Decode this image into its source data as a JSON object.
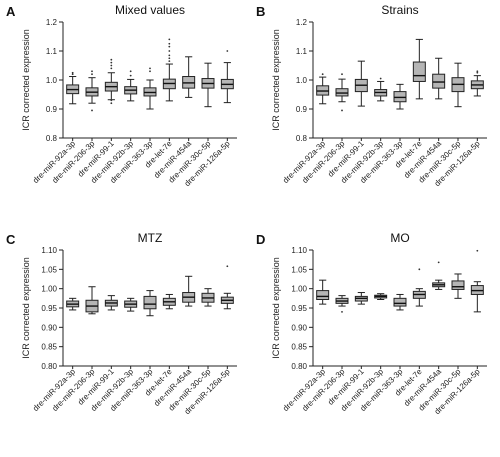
{
  "chart_data": [
    {
      "type": "box",
      "panel_letter": "A",
      "title": "Mixed values",
      "ylabel": "ICR corrected expression",
      "ylim": [
        0.8,
        1.2
      ],
      "yticks": [
        "0.8",
        "0.9",
        "1.0",
        "1.1",
        "1.2"
      ],
      "categories": [
        "dre-miR-92a-3p",
        "dre-miR-206-3p",
        "dre-miR-99-1",
        "dre-miR-92b-3p",
        "dre-miR-363-3p",
        "dre-let-7e",
        "dre-miR-454a",
        "dre-miR-30c-5p",
        "dre-miR-126a-5p"
      ],
      "boxes": [
        {
          "min": 0.918,
          "q1": 0.953,
          "median": 0.967,
          "q3": 0.983,
          "max": 1.012,
          "outliers": [
            1.02,
            1.025
          ]
        },
        {
          "min": 0.92,
          "q1": 0.945,
          "median": 0.958,
          "q3": 0.973,
          "max": 1.008,
          "outliers": [
            1.02,
            1.03,
            0.895
          ]
        },
        {
          "min": 0.932,
          "q1": 0.962,
          "median": 0.977,
          "q3": 0.992,
          "max": 1.025,
          "outliers": [
            1.04,
            1.05,
            1.06,
            1.07,
            0.93,
            0.92
          ]
        },
        {
          "min": 0.928,
          "q1": 0.952,
          "median": 0.965,
          "q3": 0.977,
          "max": 1.002,
          "outliers": [
            1.015,
            1.03
          ]
        },
        {
          "min": 0.9,
          "q1": 0.945,
          "median": 0.957,
          "q3": 0.973,
          "max": 1.0,
          "outliers": [
            1.03,
            1.04
          ]
        },
        {
          "min": 0.928,
          "q1": 0.97,
          "median": 0.988,
          "q3": 1.003,
          "max": 1.055,
          "outliers": [
            1.065,
            1.075,
            1.085,
            1.1,
            1.115,
            1.125,
            1.14
          ]
        },
        {
          "min": 0.94,
          "q1": 0.972,
          "median": 0.99,
          "q3": 1.012,
          "max": 1.08,
          "outliers": []
        },
        {
          "min": 0.908,
          "q1": 0.972,
          "median": 0.988,
          "q3": 1.005,
          "max": 1.058,
          "outliers": []
        },
        {
          "min": 0.922,
          "q1": 0.97,
          "median": 0.985,
          "q3": 1.002,
          "max": 1.06,
          "outliers": [
            1.1
          ]
        }
      ]
    },
    {
      "type": "box",
      "panel_letter": "B",
      "title": "Strains",
      "ylabel": "ICR corrected expression",
      "ylim": [
        0.8,
        1.2
      ],
      "yticks": [
        "0.8",
        "0.9",
        "1.0",
        "1.1",
        "1.2"
      ],
      "categories": [
        "dre-miR-92a-3p",
        "dre-miR-206-3p",
        "dre-miR-99-1",
        "dre-miR-92b-3p",
        "dre-miR-363-3p",
        "dre-let-7e",
        "dre-miR-454a",
        "dre-miR-30c-5p",
        "dre-miR-126a-5p"
      ],
      "boxes": [
        {
          "min": 0.918,
          "q1": 0.948,
          "median": 0.962,
          "q3": 0.98,
          "max": 1.01,
          "outliers": [
            1.02
          ]
        },
        {
          "min": 0.925,
          "q1": 0.945,
          "median": 0.955,
          "q3": 0.97,
          "max": 1.003,
          "outliers": [
            1.02,
            0.895
          ]
        },
        {
          "min": 0.91,
          "q1": 0.96,
          "median": 0.982,
          "q3": 1.002,
          "max": 1.065,
          "outliers": []
        },
        {
          "min": 0.928,
          "q1": 0.945,
          "median": 0.957,
          "q3": 0.967,
          "max": 0.995,
          "outliers": [
            1.005
          ]
        },
        {
          "min": 0.9,
          "q1": 0.925,
          "median": 0.94,
          "q3": 0.96,
          "max": 0.985,
          "outliers": []
        },
        {
          "min": 0.935,
          "q1": 0.995,
          "median": 1.015,
          "q3": 1.062,
          "max": 1.14,
          "outliers": []
        },
        {
          "min": 0.935,
          "q1": 0.972,
          "median": 0.993,
          "q3": 1.02,
          "max": 1.075,
          "outliers": []
        },
        {
          "min": 0.908,
          "q1": 0.96,
          "median": 0.985,
          "q3": 1.008,
          "max": 1.058,
          "outliers": []
        },
        {
          "min": 0.945,
          "q1": 0.97,
          "median": 0.983,
          "q3": 0.997,
          "max": 1.015,
          "outliers": [
            1.025,
            1.03
          ]
        }
      ]
    },
    {
      "type": "box",
      "panel_letter": "C",
      "title": "MTZ",
      "ylabel": "ICR corrected expression",
      "ylim": [
        0.8,
        1.1
      ],
      "yticks": [
        "0.80",
        "0.85",
        "0.90",
        "0.95",
        "1.00",
        "1.05",
        "1.10"
      ],
      "categories": [
        "dre-miR-92a-3p",
        "dre-miR-206-3p",
        "dre-miR-99-1",
        "dre-miR-92b-3p",
        "dre-miR-363-3p",
        "dre-let-7e",
        "dre-miR-454a",
        "dre-miR-30c-5p",
        "dre-miR-126a-5p"
      ],
      "boxes": [
        {
          "min": 0.945,
          "q1": 0.953,
          "median": 0.96,
          "q3": 0.968,
          "max": 0.975,
          "outliers": []
        },
        {
          "min": 0.935,
          "q1": 0.94,
          "median": 0.955,
          "q3": 0.97,
          "max": 1.005,
          "outliers": []
        },
        {
          "min": 0.945,
          "q1": 0.955,
          "median": 0.963,
          "q3": 0.97,
          "max": 0.982,
          "outliers": []
        },
        {
          "min": 0.942,
          "q1": 0.952,
          "median": 0.96,
          "q3": 0.968,
          "max": 0.975,
          "outliers": []
        },
        {
          "min": 0.93,
          "q1": 0.948,
          "median": 0.96,
          "q3": 0.98,
          "max": 0.995,
          "outliers": []
        },
        {
          "min": 0.948,
          "q1": 0.957,
          "median": 0.966,
          "q3": 0.975,
          "max": 0.985,
          "outliers": []
        },
        {
          "min": 0.955,
          "q1": 0.965,
          "median": 0.978,
          "q3": 0.99,
          "max": 1.032,
          "outliers": []
        },
        {
          "min": 0.955,
          "q1": 0.965,
          "median": 0.976,
          "q3": 0.988,
          "max": 1.0,
          "outliers": []
        },
        {
          "min": 0.948,
          "q1": 0.962,
          "median": 0.97,
          "q3": 0.978,
          "max": 0.988,
          "outliers": [
            1.058
          ]
        }
      ]
    },
    {
      "type": "box",
      "panel_letter": "D",
      "title": "MO",
      "ylabel": "ICR corrected expression",
      "ylim": [
        0.8,
        1.1
      ],
      "yticks": [
        "0.80",
        "0.85",
        "0.90",
        "0.95",
        "1.00",
        "1.05",
        "1.10"
      ],
      "categories": [
        "dre-miR-92a-3p",
        "dre-miR-206-3p",
        "dre-miR-99-1",
        "dre-miR-92b-3p",
        "dre-miR-363-3p",
        "dre-let-7e",
        "dre-miR-454a",
        "dre-miR-30c-5p",
        "dre-miR-126a-5p"
      ],
      "boxes": [
        {
          "min": 0.96,
          "q1": 0.972,
          "median": 0.98,
          "q3": 0.995,
          "max": 1.022,
          "outliers": []
        },
        {
          "min": 0.955,
          "q1": 0.962,
          "median": 0.968,
          "q3": 0.975,
          "max": 0.982,
          "outliers": [
            0.94
          ]
        },
        {
          "min": 0.96,
          "q1": 0.968,
          "median": 0.975,
          "q3": 0.98,
          "max": 0.99,
          "outliers": []
        },
        {
          "min": 0.972,
          "q1": 0.976,
          "median": 0.98,
          "q3": 0.983,
          "max": 0.987,
          "outliers": []
        },
        {
          "min": 0.945,
          "q1": 0.955,
          "median": 0.962,
          "q3": 0.975,
          "max": 0.985,
          "outliers": []
        },
        {
          "min": 0.955,
          "q1": 0.975,
          "median": 0.985,
          "q3": 0.993,
          "max": 1.0,
          "outliers": [
            1.05
          ]
        },
        {
          "min": 0.998,
          "q1": 1.005,
          "median": 1.01,
          "q3": 1.015,
          "max": 1.022,
          "outliers": [
            1.068
          ]
        },
        {
          "min": 0.975,
          "q1": 0.998,
          "median": 1.005,
          "q3": 1.02,
          "max": 1.038,
          "outliers": []
        },
        {
          "min": 0.94,
          "q1": 0.985,
          "median": 0.995,
          "q3": 1.008,
          "max": 1.018,
          "outliers": [
            1.098
          ]
        }
      ]
    }
  ]
}
